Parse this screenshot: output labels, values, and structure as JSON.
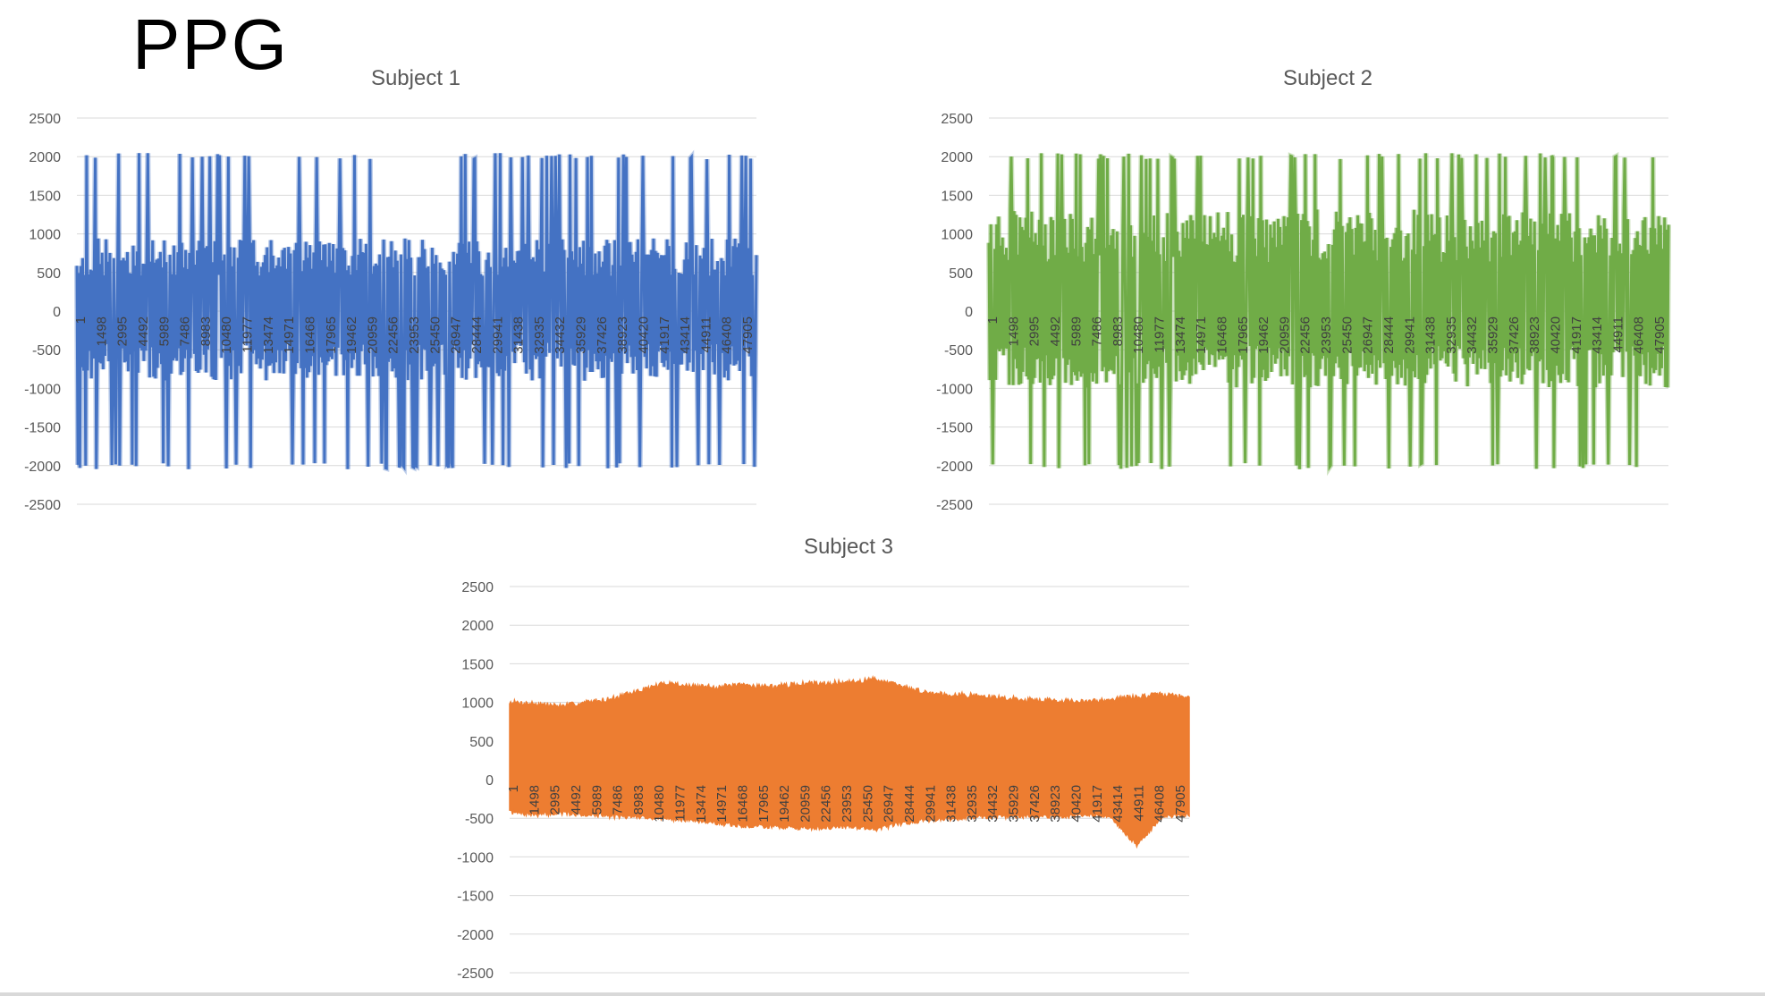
{
  "page": {
    "title": "PPG"
  },
  "chart_data": [
    {
      "id": "subject-1",
      "type": "line",
      "title": "Subject 1",
      "color": "#4472C4",
      "ylim": [
        -2500,
        2500
      ],
      "yticks": [
        2500,
        2000,
        1500,
        1000,
        500,
        0,
        -500,
        -1000,
        -1500,
        -2000,
        -2500
      ],
      "x_range": [
        1,
        49152
      ],
      "xtick_labels": [
        "1",
        "1498",
        "2995",
        "4492",
        "5989",
        "7486",
        "8983",
        "10480",
        "11977",
        "13474",
        "14971",
        "16468",
        "17965",
        "19462",
        "20959",
        "22456",
        "23953",
        "25450",
        "26947",
        "28444",
        "29941",
        "31438",
        "32935",
        "34432",
        "35929",
        "37426",
        "38923",
        "40420",
        "41917",
        "43414",
        "44911",
        "46408",
        "47905"
      ],
      "signal": {
        "base_high": 820,
        "base_low": -820,
        "spike_max": 2047,
        "spike_min": -2047,
        "spike_rate": 0.14,
        "seed": 11
      }
    },
    {
      "id": "subject-2",
      "type": "line",
      "title": "Subject 2",
      "color": "#70AD47",
      "ylim": [
        -2500,
        2500
      ],
      "yticks": [
        2500,
        2000,
        1500,
        1000,
        500,
        0,
        -500,
        -1000,
        -1500,
        -2000,
        -2500
      ],
      "x_range": [
        1,
        49152
      ],
      "xtick_labels": [
        "1",
        "1498",
        "2995",
        "4492",
        "5989",
        "7486",
        "8983",
        "10480",
        "11977",
        "13474",
        "14971",
        "16468",
        "17965",
        "19462",
        "20959",
        "22456",
        "23953",
        "25450",
        "26947",
        "28444",
        "29941",
        "31438",
        "32935",
        "34432",
        "35929",
        "37426",
        "38923",
        "40420",
        "41917",
        "43414",
        "44911",
        "46408",
        "47905"
      ],
      "signal": {
        "base_high": 1150,
        "base_low": -900,
        "spike_max": 2047,
        "spike_min": -2047,
        "spike_rate": 0.12,
        "seed": 23
      }
    },
    {
      "id": "subject-3",
      "type": "area",
      "title": "Subject 3",
      "color": "#ED7D31",
      "ylim": [
        -2500,
        2500
      ],
      "yticks": [
        2500,
        2000,
        1500,
        1000,
        500,
        0,
        -500,
        -1000,
        -1500,
        -2000,
        -2500
      ],
      "x_range": [
        1,
        49152
      ],
      "xtick_labels": [
        "1",
        "1498",
        "2995",
        "4492",
        "5989",
        "7486",
        "8983",
        "10480",
        "11977",
        "13474",
        "14971",
        "16468",
        "17965",
        "19462",
        "20959",
        "22456",
        "23953",
        "25450",
        "26947",
        "28444",
        "29941",
        "31438",
        "32935",
        "34432",
        "35929",
        "37426",
        "38923",
        "40420",
        "41917",
        "43414",
        "44911",
        "46408",
        "47905"
      ],
      "envelope_upper": [
        1000,
        980,
        950,
        1000,
        1050,
        1150,
        1250,
        1200,
        1200,
        1220,
        1200,
        1230,
        1250,
        1250,
        1300,
        1200,
        1120,
        1100,
        1080,
        1050,
        1030,
        1020,
        1000,
        1040,
        1070,
        1100,
        1060
      ],
      "envelope_lower": [
        -420,
        -450,
        -430,
        -450,
        -470,
        -480,
        -500,
        -520,
        -560,
        -600,
        -600,
        -620,
        -620,
        -600,
        -640,
        -560,
        -520,
        -500,
        -480,
        -470,
        -470,
        -470,
        -460,
        -480,
        -850,
        -470,
        -450
      ]
    }
  ]
}
